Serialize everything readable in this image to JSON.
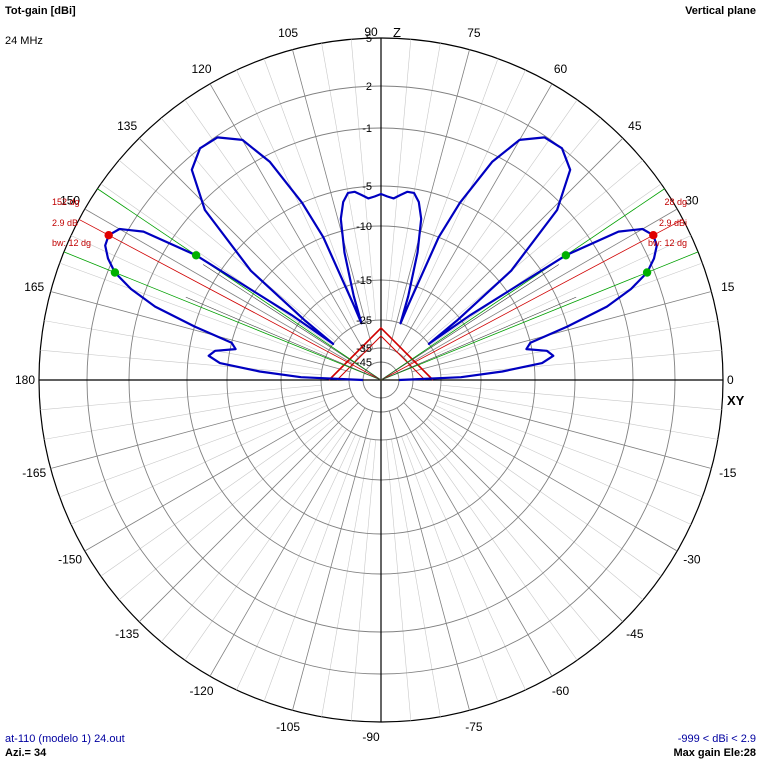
{
  "header": {
    "title": "Tot-gain [dBi]",
    "frequency": "24 MHz",
    "plane": "Vertical plane"
  },
  "footer": {
    "file": "at-110 (modelo 1) 24.out",
    "azimuth": "Azi.= 34",
    "range": "-999 < dBi < 2.9",
    "max_gain": "Max gain Ele:28"
  },
  "axis_labels": {
    "z": "Z",
    "xy": "XY"
  },
  "chart_data": {
    "type": "polar",
    "title": "Tot-gain [dBi]",
    "angle_labels": [
      "0",
      "15",
      "30",
      "45",
      "60",
      "75",
      "90",
      "105",
      "120",
      "135",
      "150",
      "165",
      "180",
      "-165",
      "-150",
      "-135",
      "-120",
      "-105",
      "-90",
      "-75",
      "-60",
      "-45",
      "-30",
      "-15"
    ],
    "radial_labels": [
      "5",
      "2",
      "-1",
      "-5",
      "-10",
      "-15",
      "-25",
      "-35",
      "-45"
    ],
    "max_gain_dbi": 2.9,
    "series": [
      {
        "color": "#0000c0",
        "points": [
          {
            "ele": 0,
            "dbi": -45
          },
          {
            "ele": 2,
            "dbi": -20
          },
          {
            "ele": 4,
            "dbi": -13
          },
          {
            "ele": 6,
            "dbi": -9
          },
          {
            "ele": 8,
            "dbi": -7.5
          },
          {
            "ele": 10,
            "dbi": -8.2
          },
          {
            "ele": 12,
            "dbi": -10.5
          },
          {
            "ele": 14,
            "dbi": -10
          },
          {
            "ele": 16,
            "dbi": -5
          },
          {
            "ele": 18,
            "dbi": -2
          },
          {
            "ele": 20,
            "dbi": 0
          },
          {
            "ele": 22,
            "dbi": 1.5
          },
          {
            "ele": 24,
            "dbi": 2.3
          },
          {
            "ele": 26,
            "dbi": 2.8
          },
          {
            "ele": 28,
            "dbi": 2.9
          },
          {
            "ele": 30,
            "dbi": 2.5
          },
          {
            "ele": 32,
            "dbi": 1
          },
          {
            "ele": 34,
            "dbi": -3
          },
          {
            "ele": 36,
            "dbi": -14
          },
          {
            "ele": 37,
            "dbi": -25
          },
          {
            "ele": 38,
            "dbi": -16
          },
          {
            "ele": 40,
            "dbi": -8
          },
          {
            "ele": 44,
            "dbi": -1.5
          },
          {
            "ele": 48,
            "dbi": 1.2
          },
          {
            "ele": 52,
            "dbi": 2
          },
          {
            "ele": 56,
            "dbi": 1.9
          },
          {
            "ele": 60,
            "dbi": 0.8
          },
          {
            "ele": 63,
            "dbi": -1.5
          },
          {
            "ele": 66,
            "dbi": -5
          },
          {
            "ele": 68,
            "dbi": -10
          },
          {
            "ele": 70,
            "dbi": -20
          },
          {
            "ele": 71,
            "dbi": -25
          },
          {
            "ele": 72,
            "dbi": -18
          },
          {
            "ele": 74,
            "dbi": -12
          },
          {
            "ele": 76,
            "dbi": -8.5
          },
          {
            "ele": 78,
            "dbi": -6.5
          },
          {
            "ele": 80,
            "dbi": -5.5
          },
          {
            "ele": 82,
            "dbi": -5.5
          },
          {
            "ele": 84,
            "dbi": -6
          },
          {
            "ele": 86,
            "dbi": -6.5
          },
          {
            "ele": 88,
            "dbi": -6.3
          },
          {
            "ele": 90,
            "dbi": -6
          }
        ]
      }
    ],
    "markers": {
      "max_angle": 28,
      "beamwidth_dg": 12,
      "lower_half_power": 22,
      "upper_half_power": 34
    },
    "annotations": {
      "right": [
        "28 dg",
        "2.9 dBi",
        "bw: 12 dg"
      ],
      "left": [
        "152 dg",
        "2.9 dB",
        "bw: 12 dg"
      ]
    }
  }
}
